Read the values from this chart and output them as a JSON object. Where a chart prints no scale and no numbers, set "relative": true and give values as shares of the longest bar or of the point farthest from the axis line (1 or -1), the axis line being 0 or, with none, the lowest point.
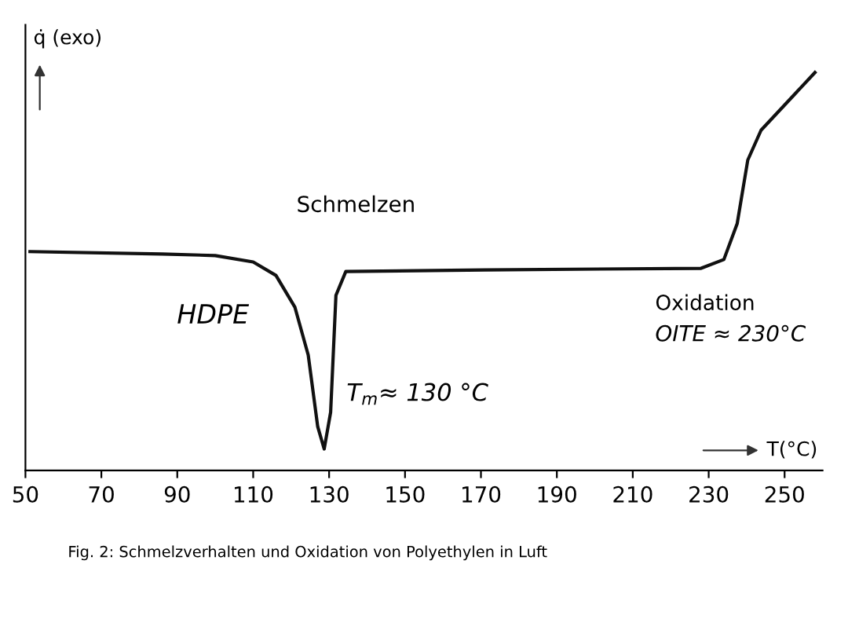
{
  "chart_data": {
    "type": "line",
    "relative": true,
    "xlabel": "T(°C)",
    "ylabel": "q̇ (exo)",
    "x": [
      51.2,
      86,
      100,
      110,
      116,
      121,
      124.5,
      127,
      128.7,
      130.4,
      131.8,
      134.4,
      171,
      228,
      234,
      237.5,
      240.3,
      243.8,
      258
    ],
    "series": [
      {
        "color": "#111111",
        "values": [
          0.55,
          0.544,
          0.54,
          0.524,
          0.49,
          0.41,
          0.29,
          0.11,
          0.054,
          0.146,
          0.44,
          0.5,
          0.504,
          0.508,
          0.53,
          0.62,
          0.78,
          0.855,
          1.0
        ]
      }
    ],
    "xlim": [
      50,
      260
    ],
    "xticks": [
      50,
      70,
      90,
      110,
      130,
      150,
      170,
      190,
      210,
      230,
      250
    ],
    "annotations": [
      "Schmelzen",
      "HDPE",
      {
        "text": "T$_{m}$≈ 130 °C",
        "x": 130,
        "y": 0.054
      },
      "Oxidation",
      "OITE ≈ 230°C",
      "Fig. 2: Schmelzverhalten und Oxidation von Polyethylen in Luft"
    ],
    "grid": false,
    "legend": false,
    "marker": "none",
    "line_style": "solid"
  }
}
